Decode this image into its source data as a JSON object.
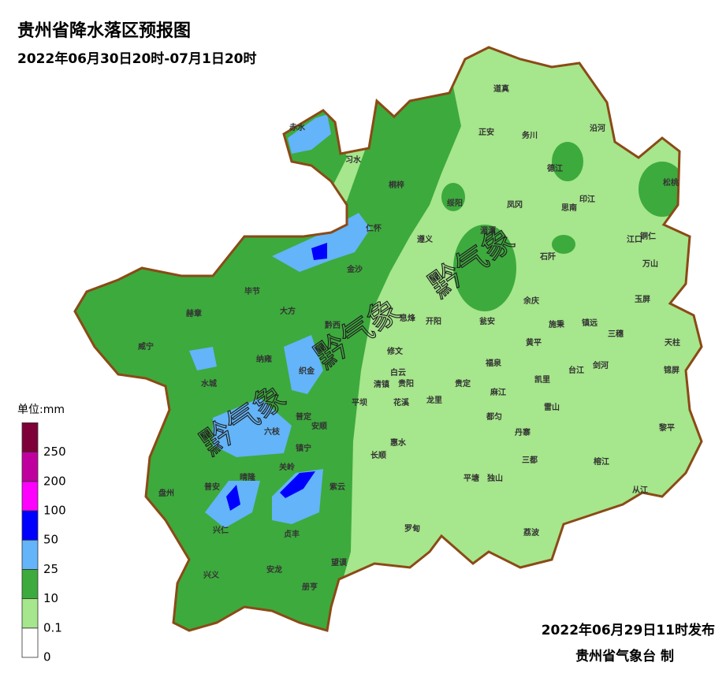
{
  "header": {
    "title": "贵州省降水落区预报图",
    "subtitle": "2022年06月30日20时-07月1日20时"
  },
  "legend": {
    "title": "单位:mm",
    "items": [
      {
        "label": "0",
        "color": "#ffffff"
      },
      {
        "label": "0.1",
        "color": "#a6e68c"
      },
      {
        "label": "10",
        "color": "#3daa3d"
      },
      {
        "label": "25",
        "color": "#63b4f8"
      },
      {
        "label": "50",
        "color": "#0000fe"
      },
      {
        "label": "100",
        "color": "#fe00fe"
      },
      {
        "label": "200",
        "color": "#c0009e"
      },
      {
        "label": "250",
        "color": "#7d0038"
      }
    ]
  },
  "cities": [
    "道真",
    "正安",
    "务川",
    "沿河",
    "赤水",
    "习水",
    "桐梓",
    "绥阳",
    "凤冈",
    "德江",
    "印江",
    "思南",
    "松桃",
    "仁怀",
    "遵义",
    "湄潭",
    "江口",
    "铜仁",
    "石阡",
    "万山",
    "金沙",
    "毕节",
    "大方",
    "黔西",
    "赫章",
    "息烽",
    "开阳",
    "余庆",
    "玉屏",
    "威宁",
    "瓮安",
    "施秉",
    "镇远",
    "三穗",
    "天柱",
    "修文",
    "黄平",
    "纳雍",
    "织金",
    "清镇",
    "白云",
    "贵阳",
    "福泉",
    "剑河",
    "台江",
    "锦屏",
    "水城",
    "平坝",
    "花溪",
    "龙里",
    "贵定",
    "麻江",
    "凯里",
    "雷山",
    "普定",
    "安顺",
    "六枝",
    "都匀",
    "丹寨",
    "黎平",
    "惠水",
    "长顺",
    "镇宁",
    "三都",
    "榕江",
    "关岭",
    "普安",
    "晴隆",
    "紫云",
    "平塘",
    "独山",
    "从江",
    "盘州",
    "兴仁",
    "贞丰",
    "罗甸",
    "荔波",
    "望谟",
    "兴义",
    "安龙",
    "册亨"
  ],
  "watermark": "黔气象",
  "footer": {
    "issued": "2022年06月29日11时发布",
    "agency": "贵州省气象台 制"
  }
}
